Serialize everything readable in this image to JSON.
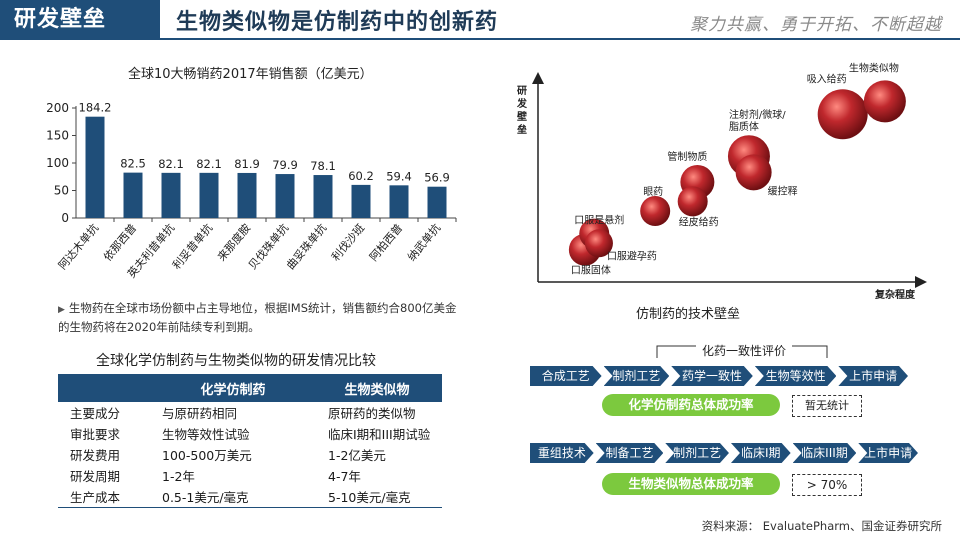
{
  "header": {
    "section": "研发壁垒",
    "title": "生物类似物是仿制药中的创新药",
    "slogan": "聚力共赢、勇于开拓、不断超越"
  },
  "chart_data": [
    {
      "type": "bar",
      "title": "全球10大畅销药2017年销售额（亿美元）",
      "categories": [
        "阿达木单抗",
        "依那西普",
        "英夫利昔单抗",
        "利妥昔单抗",
        "来那度胺",
        "贝伐珠单抗",
        "曲妥珠单抗",
        "利伐沙班",
        "阿柏西普",
        "纳武单抗"
      ],
      "values": [
        184.2,
        82.5,
        82.1,
        82.1,
        81.9,
        79.9,
        78.1,
        60.2,
        59.4,
        56.9
      ],
      "ylim": [
        0,
        200
      ],
      "yticks": [
        0,
        50,
        100,
        150,
        200
      ],
      "bar_color": "#1f4e79"
    },
    {
      "type": "scatter",
      "title": "仿制药的技术壁垒",
      "xlabel": "复杂程度",
      "ylabel": "研发壁垒",
      "points": [
        {
          "label": "口服固体",
          "x": 1.0,
          "y": 1.0,
          "size": 16
        },
        {
          "label": "口服是悬剂",
          "x": 1.2,
          "y": 1.5,
          "size": 15
        },
        {
          "label": "口服避孕药",
          "x": 1.3,
          "y": 1.2,
          "size": 14
        },
        {
          "label": "眼药",
          "x": 2.5,
          "y": 2.2,
          "size": 15
        },
        {
          "label": "管制物质",
          "x": 3.4,
          "y": 3.1,
          "size": 17
        },
        {
          "label": "经皮给药",
          "x": 3.3,
          "y": 2.5,
          "size": 15
        },
        {
          "label": "注射剂/微球/脂质体",
          "x": 4.5,
          "y": 3.9,
          "size": 21
        },
        {
          "label": "缓控释",
          "x": 4.6,
          "y": 3.4,
          "size": 18
        },
        {
          "label": "吸入给药",
          "x": 6.5,
          "y": 5.2,
          "size": 25
        },
        {
          "label": "生物类似物",
          "x": 7.4,
          "y": 5.6,
          "size": 21
        }
      ],
      "bubble_color": "#c0282d"
    }
  ],
  "bullet_text": "生物药在全球市场份额中占主导地位，根据IMS统计，销售额约合800亿美金的生物药将在2020年前陆续专利到期。",
  "comparison": {
    "title": "全球化学仿制药与生物类似物的研发情况比较",
    "headers": [
      "",
      "化学仿制药",
      "生物类似物"
    ],
    "rows": [
      [
        "主要成分",
        "与原研药相同",
        "原研药的类似物"
      ],
      [
        "审批要求",
        "生物等效性试验",
        "临床I期和III期试验"
      ],
      [
        "研发费用",
        "100-500万美元",
        "1-2亿美元"
      ],
      [
        "研发周期",
        "1-2年",
        "4-7年"
      ],
      [
        "生产成本",
        "0.5-1美元/毫克",
        "5-10美元/毫克"
      ]
    ]
  },
  "flow": {
    "bracket_label": "化药一致性评价",
    "chem_steps": [
      "合成工艺",
      "制剂工艺",
      "药学一致性",
      "生物等效性",
      "上市申请"
    ],
    "chem_rate_label": "化学仿制药总体成功率",
    "chem_rate_value": "暂无统计",
    "bio_steps": [
      "重组技术",
      "制备工艺",
      "制剂工艺",
      "临床I期",
      "临床III期",
      "上市申请"
    ],
    "bio_rate_label": "生物类似物总体成功率",
    "bio_rate_value": "> 70%",
    "step_color": "#1f4e79",
    "rate_color": "#7cc93e"
  },
  "source": "资料来源：   EvaluatePharm、国金证券研究所"
}
